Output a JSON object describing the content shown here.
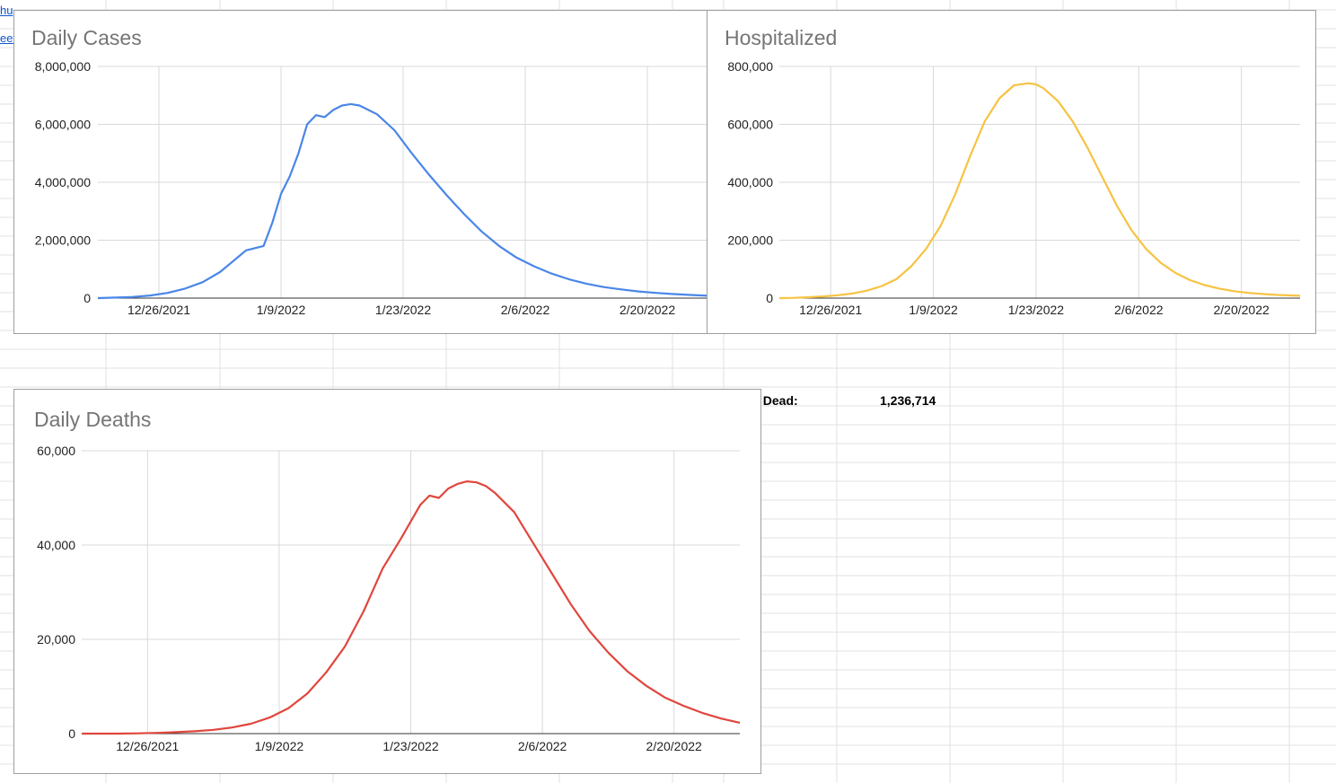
{
  "sheet": {
    "left_links": [
      {
        "text": "hu"
      },
      {
        "text": "eet"
      }
    ],
    "total_dead_label": "l Dead:",
    "total_dead_value": "1,236,714"
  },
  "chart_data": [
    {
      "id": "cases",
      "type": "line",
      "title": "Daily Cases",
      "color": "#4a86e8",
      "x_start": "2021-12-19",
      "x_end": "2022-02-27",
      "xticks": [
        "12/26/2021",
        "1/9/2022",
        "1/23/2022",
        "2/6/2022",
        "2/20/2022"
      ],
      "ylim": [
        0,
        8000000
      ],
      "yticks": [
        "0",
        "2,000,000",
        "4,000,000",
        "6,000,000",
        "8,000,000"
      ],
      "series": [
        {
          "x": [
            "12/19",
            "12/21",
            "12/23",
            "12/25",
            "12/27",
            "12/29",
            "12/31",
            "1/2",
            "1/4",
            "1/5",
            "1/7",
            "1/8",
            "1/9",
            "1/10",
            "1/11",
            "1/12",
            "1/13",
            "1/14",
            "1/15",
            "1/16",
            "1/17",
            "1/18",
            "1/20",
            "1/22",
            "1/24",
            "1/26",
            "1/28",
            "1/30",
            "2/1",
            "2/3",
            "2/5",
            "2/7",
            "2/9",
            "2/11",
            "2/13",
            "2/15",
            "2/17",
            "2/19",
            "2/21",
            "2/23",
            "2/25",
            "2/27"
          ],
          "values": [
            0,
            20000,
            40000,
            90000,
            180000,
            330000,
            550000,
            900000,
            1400000,
            1650000,
            1800000,
            2600000,
            3600000,
            4200000,
            5000000,
            6000000,
            6320000,
            6250000,
            6500000,
            6650000,
            6700000,
            6650000,
            6350000,
            5800000,
            5000000,
            4250000,
            3550000,
            2900000,
            2300000,
            1800000,
            1400000,
            1100000,
            850000,
            650000,
            500000,
            380000,
            300000,
            230000,
            180000,
            140000,
            110000,
            80000
          ]
        }
      ]
    },
    {
      "id": "hospitalized",
      "type": "line",
      "title": "Hospitalized",
      "color": "#f6c342",
      "x_start": "2021-12-19",
      "x_end": "2022-02-28",
      "xticks": [
        "12/26/2021",
        "1/9/2022",
        "1/23/2022",
        "2/6/2022",
        "2/20/2022"
      ],
      "ylim": [
        0,
        800000
      ],
      "yticks": [
        "0",
        "200,000",
        "400,000",
        "600,000",
        "800,000"
      ],
      "series": [
        {
          "x": [
            "12/19",
            "12/21",
            "12/23",
            "12/25",
            "12/27",
            "12/29",
            "12/31",
            "1/2",
            "1/4",
            "1/6",
            "1/8",
            "1/10",
            "1/12",
            "1/14",
            "1/16",
            "1/18",
            "1/20",
            "1/22",
            "1/23",
            "1/24",
            "1/26",
            "1/28",
            "1/30",
            "2/1",
            "2/3",
            "2/5",
            "2/7",
            "2/9",
            "2/11",
            "2/13",
            "2/15",
            "2/17",
            "2/19",
            "2/21",
            "2/23",
            "2/25",
            "2/28"
          ],
          "values": [
            0,
            1000,
            3000,
            6000,
            10000,
            16000,
            26000,
            42000,
            66000,
            110000,
            170000,
            250000,
            360000,
            490000,
            610000,
            690000,
            735000,
            742000,
            738000,
            725000,
            680000,
            610000,
            520000,
            420000,
            320000,
            235000,
            170000,
            122000,
            87000,
            62000,
            45000,
            33000,
            24000,
            18000,
            14000,
            11000,
            8000
          ]
        }
      ]
    },
    {
      "id": "deaths",
      "type": "line",
      "title": "Daily Deaths",
      "color": "#e0463d",
      "x_start": "2021-12-19",
      "x_end": "2022-02-27",
      "xticks": [
        "12/26/2021",
        "1/9/2022",
        "1/23/2022",
        "2/6/2022",
        "2/20/2022"
      ],
      "ylim": [
        0,
        60000
      ],
      "yticks": [
        "0",
        "20,000",
        "40,000",
        "60,000"
      ],
      "series": [
        {
          "x": [
            "12/19",
            "12/21",
            "12/23",
            "12/25",
            "12/27",
            "12/29",
            "12/31",
            "1/2",
            "1/4",
            "1/6",
            "1/8",
            "1/10",
            "1/12",
            "1/14",
            "1/16",
            "1/18",
            "1/19",
            "1/20",
            "1/22",
            "1/24",
            "1/25",
            "1/26",
            "1/27",
            "1/28",
            "1/29",
            "1/30",
            "1/31",
            "2/1",
            "2/3",
            "2/5",
            "2/7",
            "2/9",
            "2/11",
            "2/13",
            "2/15",
            "2/17",
            "2/19",
            "2/21",
            "2/23",
            "2/25",
            "2/27"
          ],
          "values": [
            0,
            0,
            0,
            50,
            150,
            300,
            500,
            800,
            1300,
            2100,
            3400,
            5400,
            8500,
            13000,
            18500,
            26000,
            30500,
            35000,
            41500,
            48500,
            50500,
            50000,
            52000,
            53000,
            53500,
            53300,
            52500,
            51000,
            47000,
            40500,
            34000,
            27500,
            21800,
            17200,
            13300,
            10200,
            7700,
            5900,
            4400,
            3200,
            2300
          ]
        }
      ]
    }
  ]
}
